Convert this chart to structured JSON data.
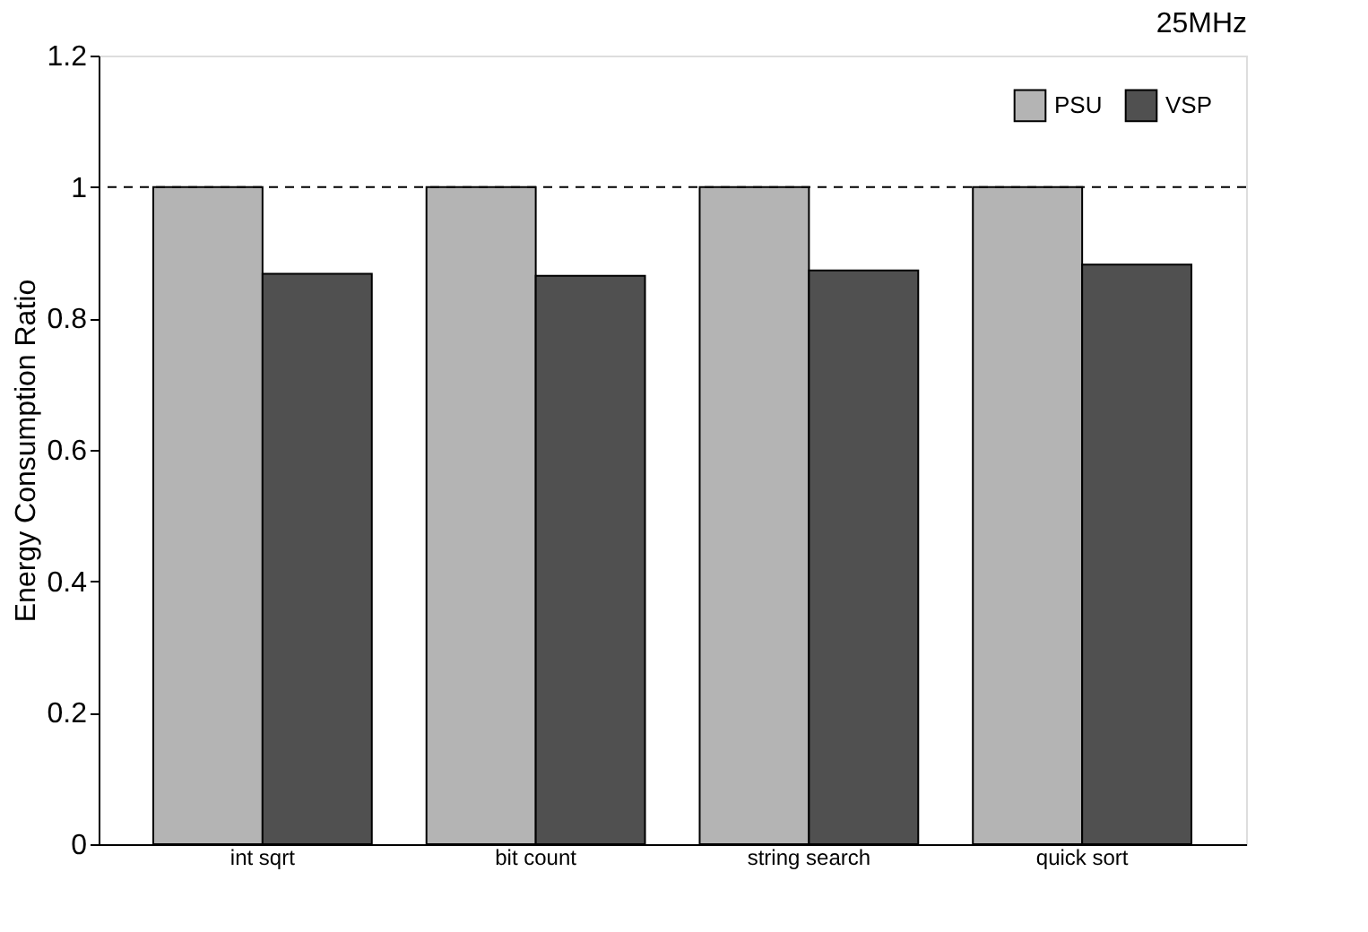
{
  "chart_data": {
    "type": "bar",
    "title": "25MHz",
    "ylabel": "Energy Consumption Ratio",
    "categories": [
      "int sqrt",
      "bit count",
      "string search",
      "quick sort"
    ],
    "series": [
      {
        "name": "PSU",
        "color": "#b4b4b4",
        "values": [
          1.0,
          1.0,
          1.0,
          1.0
        ]
      },
      {
        "name": "VSP",
        "color": "#505050",
        "values": [
          0.868,
          0.865,
          0.873,
          0.882
        ]
      }
    ],
    "ylim": [
      0,
      1.2
    ],
    "yticks": [
      0,
      0.2,
      0.4,
      0.6,
      0.8,
      1,
      1.2
    ],
    "ref_lines": [
      {
        "axis": "y",
        "value": 1,
        "line_style": "dashed",
        "color": "#000000"
      }
    ],
    "grid": false,
    "legend": "top right"
  }
}
